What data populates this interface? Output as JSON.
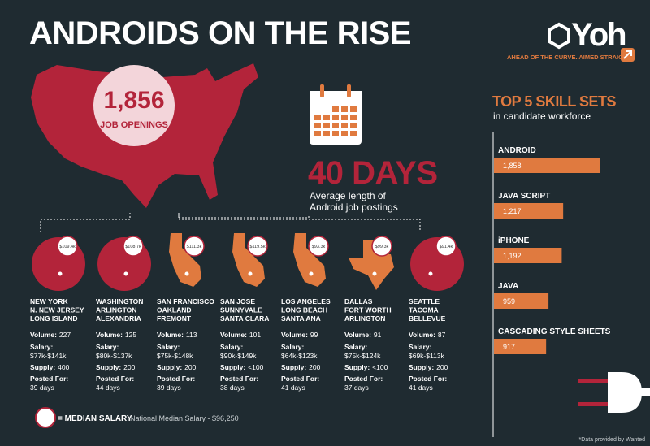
{
  "header": {
    "title": "ANDROIDS ON THE RISE",
    "brand": "Yoh",
    "tagline": "AHEAD OF THE CURVE. AIMED STRAIGHT."
  },
  "openings": {
    "number": "1,856",
    "label": "JOB OPENINGS"
  },
  "days": {
    "number": "40 DAYS",
    "lines": [
      "Average length of",
      "Android job postings"
    ]
  },
  "skills": {
    "title": "TOP 5 SKILL SETS",
    "subtitle": "in candidate workforce",
    "items": [
      {
        "name": "ANDROID",
        "value": 1858,
        "value_label": "1,858"
      },
      {
        "name": "JAVA SCRIPT",
        "value": 1217,
        "value_label": "1,217"
      },
      {
        "name": "iPHONE",
        "value": 1192,
        "value_label": "1,192"
      },
      {
        "name": "JAVA",
        "value": 959,
        "value_label": "959"
      },
      {
        "name": "CASCADING STYLE SHEETS",
        "value": 917,
        "value_label": "917"
      }
    ]
  },
  "field_labels": {
    "volume": "Volume:",
    "salary": "Salary:",
    "supply": "Supply:",
    "posted": "Posted For:"
  },
  "cities": [
    {
      "name_lines": [
        "NEW YORK",
        "N. NEW JERSEY",
        "LONG ISLAND"
      ],
      "median": "$109.4k",
      "volume": "227",
      "salary": "$77k-$141k",
      "supply": "400",
      "posted": "39 days"
    },
    {
      "name_lines": [
        "WASHINGTON",
        "ARLINGTON",
        "ALEXANDRIA"
      ],
      "median": "$108.7k",
      "volume": "125",
      "salary": "$80k-$137k",
      "supply": "200",
      "posted": "44 days"
    },
    {
      "name_lines": [
        "SAN FRANCISCO",
        "OAKLAND",
        "FREMONT"
      ],
      "median": "$111.3k",
      "volume": "113",
      "salary": "$75k-$148k",
      "supply": "200",
      "posted": "39 days"
    },
    {
      "name_lines": [
        "SAN JOSE",
        "SUNNYVALE",
        "SANTA CLARA"
      ],
      "median": "$119.5k",
      "volume": "101",
      "salary": "$90k-$149k",
      "supply": "<100",
      "posted": "38 days"
    },
    {
      "name_lines": [
        "LOS ANGELES",
        "LONG BEACH",
        "SANTA ANA"
      ],
      "median": "$93.3k",
      "volume": "99",
      "salary": "$64k-$123k",
      "supply": "200",
      "posted": "41 days"
    },
    {
      "name_lines": [
        "DALLAS",
        "FORT WORTH",
        "ARLINGTON"
      ],
      "median": "$99.3k",
      "volume": "91",
      "salary": "$75k-$124k",
      "supply": "<100",
      "posted": "37 days"
    },
    {
      "name_lines": [
        "SEATTLE",
        "TACOMA",
        "BELLEVUE"
      ],
      "median": "$91.4k",
      "volume": "87",
      "salary": "$69k-$113k",
      "supply": "200",
      "posted": "41 days"
    }
  ],
  "legend": {
    "label": "= MEDIAN SALARY",
    "national": "National Median Salary - $96,250"
  },
  "footnote": "*Data provided by Wanted"
}
